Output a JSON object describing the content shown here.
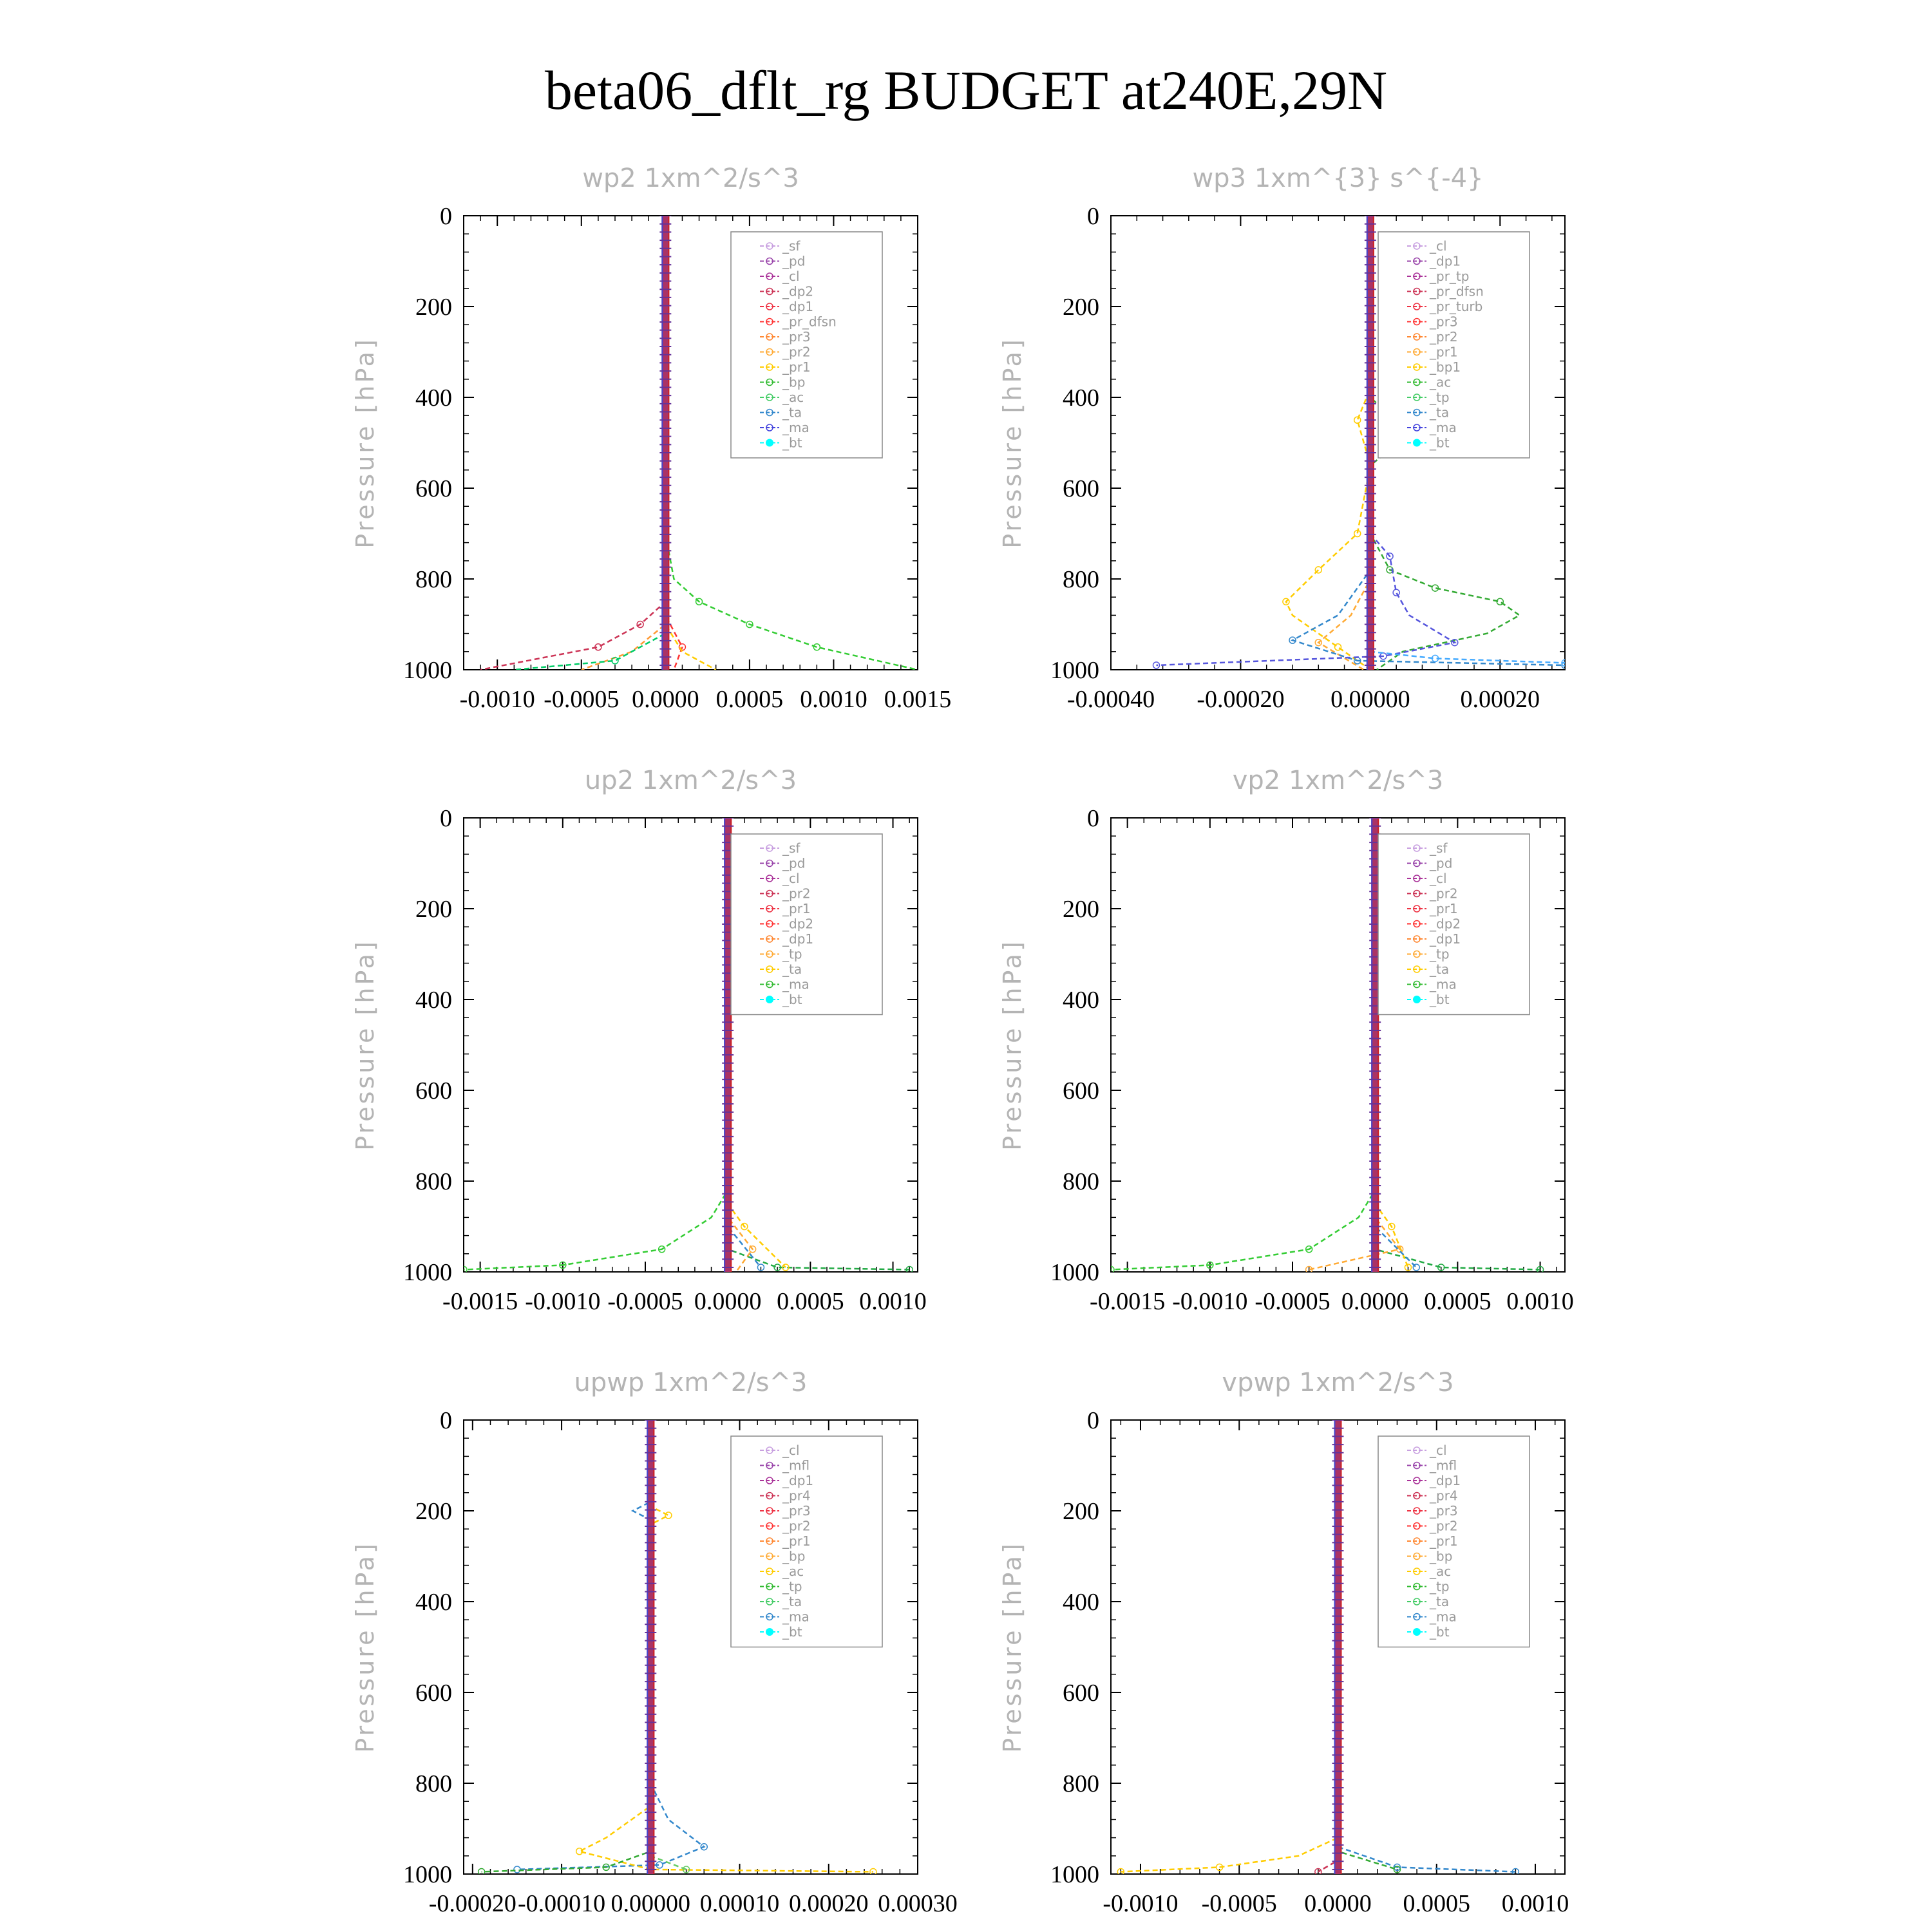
{
  "title": "beta06_dflt_rg  BUDGET at240E,29N",
  "chart_data": [
    {
      "type": "line",
      "title": "wp2   1xm^2/s^3",
      "ylabel": "Pressure [hPa]",
      "y_ticks": [
        "0",
        "200",
        "400",
        "600",
        "800",
        "1000"
      ],
      "x_ticks": [
        "-0.0010",
        "-0.0005",
        "0.0000",
        "0.0005",
        "0.0010",
        "0.0015"
      ],
      "legend": [
        "_sf",
        "_pd",
        "_cl",
        "_dp2",
        "_dp1",
        "_pr_dfsn",
        "_pr3",
        "_pr2",
        "_pr1",
        "_bp",
        "_ac",
        "_ta",
        "_ma",
        "_bt"
      ],
      "series": [
        {
          "name": "_bp",
          "color": "#33cc33",
          "points": [
            [
              0,
              0
            ],
            [
              0,
              700
            ],
            [
              5e-05,
              800
            ],
            [
              0.0002,
              850
            ],
            [
              0.0005,
              900
            ],
            [
              0.0009,
              950
            ],
            [
              0.0015,
              1000
            ]
          ]
        },
        {
          "name": "_dp2",
          "color": "#cc3355",
          "points": [
            [
              0,
              0
            ],
            [
              0,
              850
            ],
            [
              -0.00015,
              900
            ],
            [
              -0.0004,
              950
            ],
            [
              -0.0011,
              1000
            ]
          ]
        },
        {
          "name": "_dp1",
          "color": "#ff3333",
          "points": [
            [
              0,
              0
            ],
            [
              0,
              880
            ],
            [
              0.0001,
              950
            ],
            [
              5e-05,
              1000
            ]
          ]
        },
        {
          "name": "_pr1",
          "color": "#ffcc00",
          "points": [
            [
              0,
              0
            ],
            [
              0,
              900
            ],
            [
              0.0001,
              960
            ],
            [
              0.0003,
              1000
            ]
          ]
        },
        {
          "name": "_pr_dfsn",
          "color": "#ff9933",
          "points": [
            [
              0,
              0
            ],
            [
              0,
              900
            ],
            [
              -0.0002,
              960
            ],
            [
              -0.0005,
              1000
            ]
          ]
        },
        {
          "name": "_ac",
          "color": "#00cc66",
          "points": [
            [
              0,
              0
            ],
            [
              0,
              920
            ],
            [
              -0.0003,
              980
            ],
            [
              -0.0009,
              1000
            ]
          ]
        }
      ]
    },
    {
      "type": "line",
      "title": "wp3   1xm^{3} s^{-4}",
      "ylabel": "Pressure [hPa]",
      "y_ticks": [
        "0",
        "200",
        "400",
        "600",
        "800",
        "1000"
      ],
      "x_ticks": [
        "-0.00040",
        "-0.00020",
        "0.00000",
        "0.00020"
      ],
      "legend": [
        "_cl",
        "_dp1",
        "_pr_tp",
        "_pr_dfsn",
        "_pr_turb",
        "_pr3",
        "_pr2",
        "_pr1",
        "_bp1",
        "_ac",
        "_tp",
        "_ta",
        "_ma",
        "_bt"
      ],
      "series": [
        {
          "name": "_bp1",
          "color": "#33aa33",
          "points": [
            [
              0,
              0
            ],
            [
              0,
              400
            ],
            [
              6e-05,
              480
            ],
            [
              0,
              550
            ],
            [
              0,
              700
            ],
            [
              3e-05,
              780
            ],
            [
              0.0001,
              820
            ],
            [
              0.0002,
              850
            ],
            [
              0.00023,
              880
            ],
            [
              0.00018,
              920
            ],
            [
              5e-05,
              960
            ],
            [
              1e-05,
              1000
            ]
          ]
        },
        {
          "name": "_pr1",
          "color": "#ffcc00",
          "points": [
            [
              0,
              0
            ],
            [
              0,
              380
            ],
            [
              -2e-05,
              450
            ],
            [
              0,
              550
            ],
            [
              -2e-05,
              700
            ],
            [
              -8e-05,
              780
            ],
            [
              -0.00013,
              850
            ],
            [
              -0.00012,
              880
            ],
            [
              -5e-05,
              950
            ],
            [
              0,
              1000
            ]
          ]
        },
        {
          "name": "_pr2",
          "color": "#ffaa33",
          "points": [
            [
              0,
              0
            ],
            [
              0,
              800
            ],
            [
              -3e-05,
              880
            ],
            [
              -8e-05,
              940
            ],
            [
              -1e-05,
              1000
            ]
          ]
        },
        {
          "name": "_tp",
          "color": "#3388cc",
          "points": [
            [
              0,
              0
            ],
            [
              0,
              780
            ],
            [
              -5e-05,
              880
            ],
            [
              -0.00012,
              935
            ],
            [
              -2e-05,
              980
            ],
            [
              0.0003,
              990
            ]
          ]
        },
        {
          "name": "_ta",
          "color": "#5555dd",
          "points": [
            [
              0,
              0
            ],
            [
              0,
              700
            ],
            [
              3e-05,
              750
            ],
            [
              4e-05,
              830
            ],
            [
              6e-05,
              880
            ],
            [
              0.00013,
              940
            ],
            [
              2e-05,
              970
            ],
            [
              -0.00033,
              990
            ]
          ]
        },
        {
          "name": "_ma",
          "color": "#44aaff",
          "points": [
            [
              0,
              0
            ],
            [
              0,
              960
            ],
            [
              0.0001,
              975
            ],
            [
              0.0003,
              985
            ]
          ]
        }
      ]
    },
    {
      "type": "line",
      "title": "up2   1xm^2/s^3",
      "ylabel": "Pressure [hPa]",
      "y_ticks": [
        "0",
        "200",
        "400",
        "600",
        "800",
        "1000"
      ],
      "x_ticks": [
        "-0.0015",
        "-0.0010",
        "-0.0005",
        "0.0000",
        "0.0005",
        "0.0010"
      ],
      "legend": [
        "_sf",
        "_pd",
        "_cl",
        "_pr2",
        "_pr1",
        "_dp2",
        "_dp1",
        "_tp",
        "_ta",
        "_ma",
        "_bt"
      ],
      "series": [
        {
          "name": "_dp1",
          "color": "#33cc33",
          "points": [
            [
              0,
              0
            ],
            [
              0,
              820
            ],
            [
              -0.0001,
              880
            ],
            [
              -0.0004,
              950
            ],
            [
              -0.001,
              985
            ],
            [
              -0.0016,
              995
            ]
          ]
        },
        {
          "name": "_dp2",
          "color": "#22aa44",
          "points": [
            [
              0,
              0
            ],
            [
              0,
              950
            ],
            [
              0.0003,
              990
            ],
            [
              0.0011,
              995
            ]
          ]
        },
        {
          "name": "_pr1",
          "color": "#ffcc00",
          "points": [
            [
              0,
              0
            ],
            [
              0,
              850
            ],
            [
              0.0001,
              900
            ],
            [
              0.00035,
              990
            ]
          ]
        },
        {
          "name": "_pr2",
          "color": "#ffaa33",
          "points": [
            [
              0,
              0
            ],
            [
              0,
              880
            ],
            [
              0.00015,
              950
            ],
            [
              5e-05,
              1000
            ]
          ]
        },
        {
          "name": "_tp",
          "color": "#3388cc",
          "points": [
            [
              0,
              0
            ],
            [
              0,
              900
            ],
            [
              0.0002,
              990
            ]
          ]
        }
      ]
    },
    {
      "type": "line",
      "title": "vp2   1xm^2/s^3",
      "ylabel": "Pressure [hPa]",
      "y_ticks": [
        "0",
        "200",
        "400",
        "600",
        "800",
        "1000"
      ],
      "x_ticks": [
        "-0.0015",
        "-0.0010",
        "-0.0005",
        "0.0000",
        "0.0005",
        "0.0010"
      ],
      "legend": [
        "_sf",
        "_pd",
        "_cl",
        "_pr2",
        "_pr1",
        "_dp2",
        "_dp1",
        "_tp",
        "_ta",
        "_ma",
        "_bt"
      ],
      "series": [
        {
          "name": "_dp1",
          "color": "#33cc33",
          "points": [
            [
              0,
              0
            ],
            [
              0,
              820
            ],
            [
              -0.0001,
              880
            ],
            [
              -0.0004,
              950
            ],
            [
              -0.001,
              985
            ],
            [
              -0.0016,
              995
            ]
          ]
        },
        {
          "name": "_dp2",
          "color": "#22aa44",
          "points": [
            [
              0,
              0
            ],
            [
              0,
              950
            ],
            [
              0.0004,
              990
            ],
            [
              0.001,
              995
            ]
          ]
        },
        {
          "name": "_pr1",
          "color": "#ffcc00",
          "points": [
            [
              0,
              0
            ],
            [
              0,
              850
            ],
            [
              0.0001,
              900
            ],
            [
              0.0002,
              990
            ]
          ]
        },
        {
          "name": "_pr2",
          "color": "#ffaa33",
          "points": [
            [
              0,
              0
            ],
            [
              0,
              880
            ],
            [
              0.00015,
              950
            ],
            [
              -0.0004,
              995
            ]
          ]
        },
        {
          "name": "_tp",
          "color": "#3388cc",
          "points": [
            [
              0,
              0
            ],
            [
              0,
              900
            ],
            [
              0.00025,
              990
            ]
          ]
        }
      ]
    },
    {
      "type": "line",
      "title": "upwp   1xm^2/s^3",
      "ylabel": "Pressure [hPa]",
      "y_ticks": [
        "0",
        "200",
        "400",
        "600",
        "800",
        "1000"
      ],
      "x_ticks": [
        "-0.00020",
        "-0.00010",
        "0.00000",
        "0.00010",
        "0.00020",
        "0.00030"
      ],
      "legend": [
        "_cl",
        "_mfl",
        "_dp1",
        "_pr4",
        "_pr3",
        "_pr2",
        "_pr1",
        "_bp",
        "_ac",
        "_tp",
        "_ta",
        "_ma",
        "_bt"
      ],
      "series": [
        {
          "name": "_tp",
          "color": "#3388cc",
          "points": [
            [
              0,
              0
            ],
            [
              0,
              180
            ],
            [
              -2e-05,
              200
            ],
            [
              0,
              220
            ],
            [
              0,
              800
            ],
            [
              2e-05,
              880
            ],
            [
              6e-05,
              940
            ],
            [
              1e-05,
              980
            ],
            [
              -0.00015,
              990
            ]
          ]
        },
        {
          "name": "_pr1",
          "color": "#ffcc00",
          "points": [
            [
              0,
              0
            ],
            [
              0,
              190
            ],
            [
              2e-05,
              210
            ],
            [
              0,
              230
            ],
            [
              0,
              850
            ],
            [
              -5e-05,
              920
            ],
            [
              -8e-05,
              950
            ],
            [
              0,
              990
            ],
            [
              0.00025,
              995
            ]
          ]
        },
        {
          "name": "_bp",
          "color": "#33aa33",
          "points": [
            [
              0,
              0
            ],
            [
              0,
              950
            ],
            [
              -5e-05,
              985
            ],
            [
              -0.00019,
              995
            ]
          ]
        },
        {
          "name": "_ac",
          "color": "#66cc66",
          "points": [
            [
              0,
              0
            ],
            [
              0,
              960
            ],
            [
              4e-05,
              990
            ]
          ]
        }
      ]
    },
    {
      "type": "line",
      "title": "vpwp   1xm^2/s^3",
      "ylabel": "Pressure [hPa]",
      "y_ticks": [
        "0",
        "200",
        "400",
        "600",
        "800",
        "1000"
      ],
      "x_ticks": [
        "-0.0010",
        "-0.0005",
        "0.0000",
        "0.0005",
        "0.0010"
      ],
      "legend": [
        "_cl",
        "_mfl",
        "_dp1",
        "_pr4",
        "_pr3",
        "_pr2",
        "_pr1",
        "_bp",
        "_ac",
        "_tp",
        "_ta",
        "_ma",
        "_bt"
      ],
      "series": [
        {
          "name": "_pr1",
          "color": "#ffcc00",
          "points": [
            [
              0,
              0
            ],
            [
              0,
              920
            ],
            [
              -0.0002,
              960
            ],
            [
              -0.0006,
              985
            ],
            [
              -0.0011,
              995
            ]
          ]
        },
        {
          "name": "_tp",
          "color": "#3388cc",
          "points": [
            [
              0,
              0
            ],
            [
              0,
              940
            ],
            [
              0.0003,
              985
            ],
            [
              0.0009,
              995
            ]
          ]
        },
        {
          "name": "_bp",
          "color": "#33aa33",
          "points": [
            [
              0,
              0
            ],
            [
              0,
              950
            ],
            [
              0.0003,
              990
            ]
          ]
        },
        {
          "name": "_dp1",
          "color": "#cc3355",
          "points": [
            [
              0,
              0
            ],
            [
              0,
              970
            ],
            [
              -0.0001,
              995
            ]
          ]
        }
      ]
    }
  ]
}
